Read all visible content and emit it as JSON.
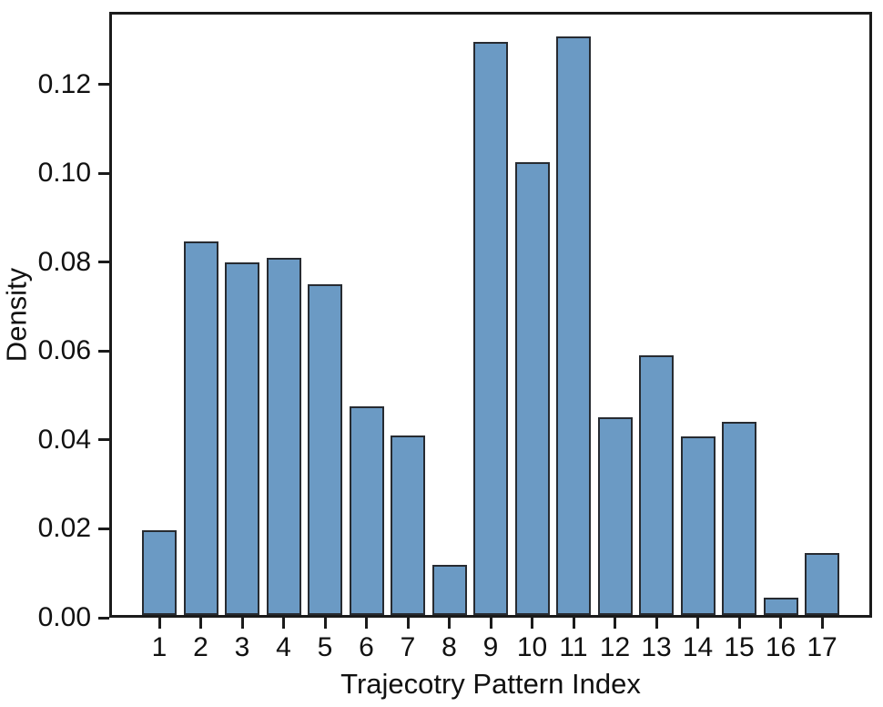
{
  "chart_data": {
    "type": "bar",
    "title": "",
    "xlabel": "Trajecotry Pattern Index",
    "ylabel": "Density",
    "categories": [
      "1",
      "2",
      "3",
      "4",
      "5",
      "6",
      "7",
      "8",
      "9",
      "10",
      "11",
      "12",
      "13",
      "14",
      "15",
      "16",
      "17"
    ],
    "values": [
      0.019,
      0.084,
      0.0793,
      0.0805,
      0.0745,
      0.047,
      0.0405,
      0.0113,
      0.129,
      0.102,
      0.1302,
      0.0445,
      0.0585,
      0.0402,
      0.0435,
      0.0038,
      0.0139
    ],
    "y_tick_labels": [
      "0.00",
      "0.02",
      "0.04",
      "0.06",
      "0.08",
      "0.10",
      "0.12"
    ],
    "y_tick_values": [
      0,
      0.02,
      0.04,
      0.06,
      0.08,
      0.1,
      0.12
    ],
    "ylim": [
      0,
      0.1364
    ],
    "grid": false,
    "legend": null,
    "colors": {
      "bar_fill": "#6b9ac4",
      "bar_edge": "#272b31",
      "axis": "#1b1b1b",
      "text": "#111111",
      "background": "#ffffff"
    }
  }
}
